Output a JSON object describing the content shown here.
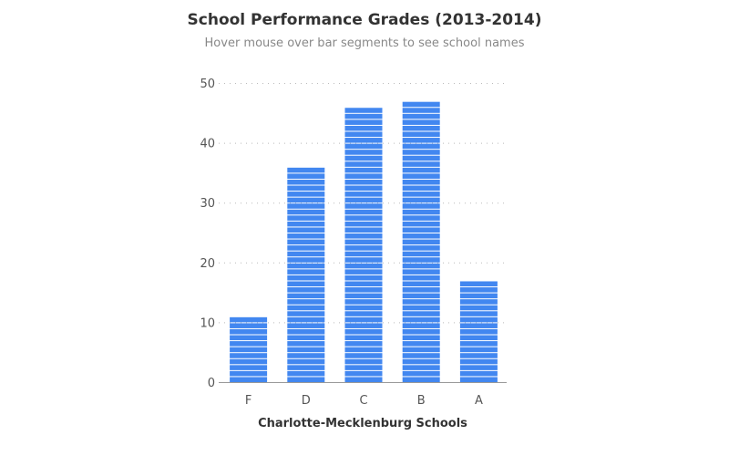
{
  "chart_data": {
    "type": "bar",
    "title": "School Performance Grades (2013-2014)",
    "subtitle": "Hover mouse over bar segments to see school names",
    "xlabel": "Charlotte-Mecklenburg Schools",
    "ylabel": "",
    "categories": [
      "F",
      "D",
      "C",
      "B",
      "A"
    ],
    "values": [
      11,
      36,
      46,
      47,
      17
    ],
    "ylim": [
      0,
      50
    ],
    "yticks": [
      "0",
      "10",
      "20",
      "30",
      "40",
      "50"
    ],
    "grid": true,
    "stacked_unit_segments": true,
    "bar_color": "#4287f0"
  }
}
